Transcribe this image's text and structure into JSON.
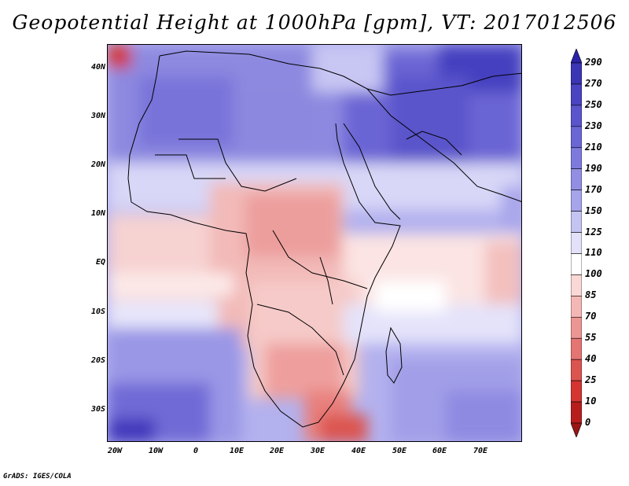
{
  "title": "Geopotential Height at 1000hPa [gpm], VT: 2017012506",
  "credit": "GrADS: IGES/COLA",
  "y_axis_labels": [
    "40N",
    "30N",
    "20N",
    "10N",
    "EQ",
    "10S",
    "20S",
    "30S"
  ],
  "x_axis_labels": [
    "20W",
    "10W",
    "0",
    "10E",
    "20E",
    "30E",
    "40E",
    "50E",
    "60E",
    "70E"
  ],
  "colorbar": {
    "labels": [
      "290",
      "270",
      "250",
      "230",
      "210",
      "190",
      "170",
      "150",
      "125",
      "110",
      "100",
      "85",
      "70",
      "55",
      "40",
      "25",
      "10",
      "0"
    ],
    "colors": [
      "#2a22a8",
      "#3b35b6",
      "#4a44c2",
      "#5a55cc",
      "#6b66d6",
      "#7e7add",
      "#918ee3",
      "#a6a4ea",
      "#c4c3f2",
      "#e2e1f9",
      "#ffffff",
      "#f9d8d6",
      "#f3b8b6",
      "#ec9694",
      "#e57572",
      "#dc5450",
      "#d33532",
      "#b81d1d",
      "#9b1414"
    ]
  }
}
